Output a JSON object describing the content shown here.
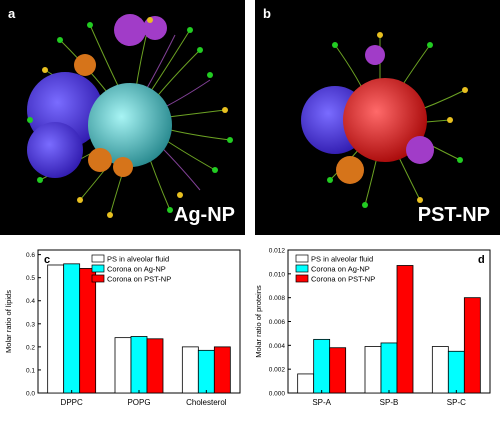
{
  "panels": {
    "a": {
      "letter": "a",
      "caption": "Ag-NP"
    },
    "b": {
      "letter": "b",
      "caption": "PST-NP"
    }
  },
  "legend_colors": [
    "#ffffff",
    "#00ffff",
    "#ff0000"
  ],
  "chart_data": [
    {
      "type": "bar",
      "panel": "c",
      "title": "",
      "xlabel": "",
      "ylabel": "Molar ratio of lipids",
      "categories": [
        "DPPC",
        "POPG",
        "Cholesterol"
      ],
      "series": [
        {
          "name": "PS in alveolar fluid",
          "values": [
            0.555,
            0.24,
            0.2
          ]
        },
        {
          "name": "Corona on Ag-NP",
          "values": [
            0.56,
            0.245,
            0.185
          ]
        },
        {
          "name": "Corona on PST-NP",
          "values": [
            0.54,
            0.235,
            0.2
          ]
        }
      ],
      "ylim": [
        0,
        0.62
      ],
      "yticks": [
        "0.0",
        "0.1",
        "0.2",
        "0.3",
        "0.4",
        "0.5",
        "0.6"
      ],
      "legend": "top-right"
    },
    {
      "type": "bar",
      "panel": "d",
      "title": "",
      "xlabel": "",
      "ylabel": "Molar ratio of proteins",
      "categories": [
        "SP-A",
        "SP-B",
        "SP-C"
      ],
      "series": [
        {
          "name": "PS in alveolar fluid",
          "values": [
            0.0016,
            0.0039,
            0.0039
          ]
        },
        {
          "name": "Corona on Ag-NP",
          "values": [
            0.0045,
            0.0042,
            0.0035
          ]
        },
        {
          "name": "Corona on PST-NP",
          "values": [
            0.0038,
            0.0107,
            0.008
          ]
        }
      ],
      "ylim": [
        0,
        0.012
      ],
      "yticks": [
        "0.000",
        "0.002",
        "0.004",
        "0.006",
        "0.008",
        "0.010",
        "0.012"
      ],
      "legend": "top-left"
    }
  ]
}
